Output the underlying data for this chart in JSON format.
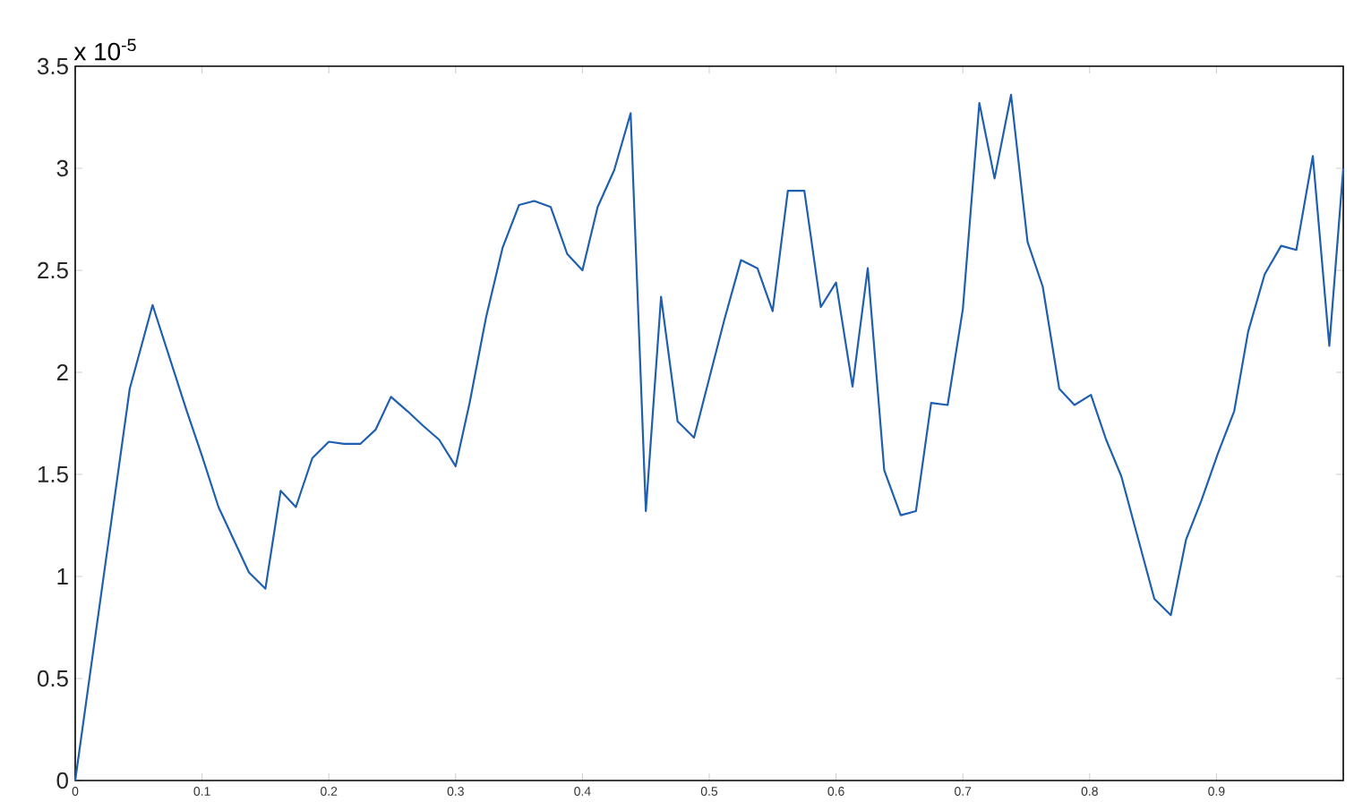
{
  "chart_data": {
    "type": "line",
    "annotations": [
      "x 10$^{-5}$"
    ],
    "xlim": [
      0,
      1
    ],
    "ylim": [
      0,
      3.5
    ],
    "xticks": [
      0,
      0.1,
      0.2,
      0.3,
      0.4,
      0.5,
      0.6,
      0.7,
      0.8,
      0.9
    ],
    "yticks": [
      0,
      0.5,
      1,
      1.5,
      2,
      2.5,
      3,
      3.5
    ],
    "series": [
      {
        "color": "#1f5fb0",
        "x": [
          0,
          0.043,
          0.061,
          0.088,
          0.1,
          0.113,
          0.125,
          0.137,
          0.15,
          0.162,
          0.174,
          0.187,
          0.2,
          0.212,
          0.225,
          0.237,
          0.249,
          0.262,
          0.274,
          0.287,
          0.3,
          0.311,
          0.324,
          0.337,
          0.35,
          0.362,
          0.375,
          0.388,
          0.4,
          0.412,
          0.425,
          0.438,
          0.45,
          0.462,
          0.475,
          0.488,
          0.5,
          0.512,
          0.525,
          0.538,
          0.55,
          0.562,
          0.575,
          0.588,
          0.6,
          0.613,
          0.625,
          0.638,
          0.651,
          0.663,
          0.675,
          0.688,
          0.7,
          0.713,
          0.725,
          0.738,
          0.751,
          0.763,
          0.776,
          0.788,
          0.801,
          0.813,
          0.825,
          0.838,
          0.851,
          0.864,
          0.876,
          0.888,
          0.901,
          0.914,
          0.925,
          0.938,
          0.951,
          0.963,
          0.976,
          0.989,
          1
        ],
        "values": [
          0,
          1.92,
          2.33,
          1.81,
          1.59,
          1.34,
          1.18,
          1.02,
          0.94,
          1.42,
          1.34,
          1.58,
          1.66,
          1.65,
          1.65,
          1.72,
          1.88,
          1.81,
          1.74,
          1.67,
          1.54,
          1.85,
          2.27,
          2.61,
          2.82,
          2.84,
          2.81,
          2.58,
          2.5,
          2.81,
          2.99,
          3.27,
          1.32,
          2.37,
          1.76,
          1.68,
          1.97,
          2.26,
          2.55,
          2.51,
          2.3,
          2.89,
          2.89,
          2.32,
          2.44,
          1.93,
          2.51,
          1.52,
          1.3,
          1.32,
          1.85,
          1.84,
          2.31,
          3.32,
          2.95,
          3.36,
          2.64,
          2.42,
          1.92,
          1.84,
          1.89,
          1.67,
          1.49,
          1.19,
          0.89,
          0.81,
          1.18,
          1.37,
          1.6,
          1.81,
          2.2,
          2.48,
          2.62,
          2.6,
          3.06,
          2.13,
          3.0
        ]
      }
    ]
  }
}
